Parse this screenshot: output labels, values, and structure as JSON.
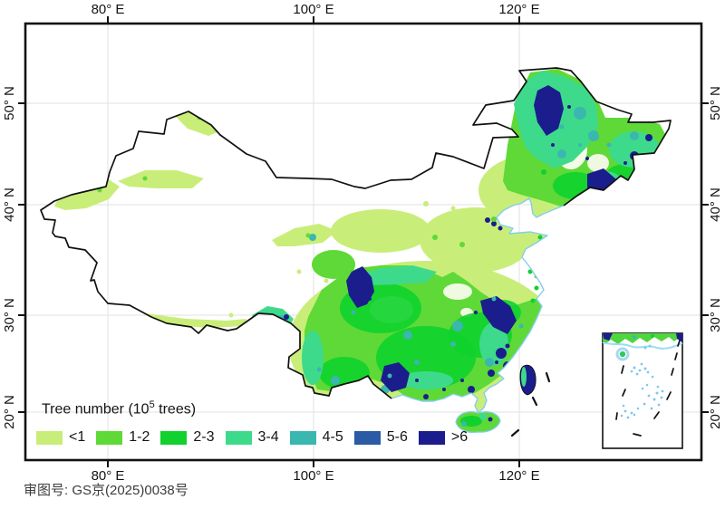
{
  "map": {
    "axes": {
      "top": [
        "80° E",
        "100° E",
        "120° E"
      ],
      "bottom": [
        "80° E",
        "100° E",
        "120° E"
      ],
      "left": [
        "50° N",
        "40° N",
        "30° N",
        "20° N"
      ],
      "right": [
        "50° N",
        "40° N",
        "30° N",
        "20° N"
      ]
    },
    "legend": {
      "title_prefix": "Tree number (10",
      "title_sup": "5",
      "title_suffix": " trees)",
      "items": [
        {
          "label": "<1",
          "color": "#c8ee79"
        },
        {
          "label": "1-2",
          "color": "#5fd937"
        },
        {
          "label": "2-3",
          "color": "#10d12e"
        },
        {
          "label": "3-4",
          "color": "#3eda8b"
        },
        {
          "label": "4-5",
          "color": "#3ab7af"
        },
        {
          "label": "5-6",
          "color": "#2a5ba4"
        },
        {
          "label": ">6",
          "color": "#1b1d8c"
        }
      ]
    },
    "footnote": "审图号: GS京(2025)0038号",
    "colors": {
      "border": "#111111",
      "coastline": "#85cdec",
      "grid": "#e2e2e2",
      "island_dots": "#7fc8ea"
    },
    "inset": {
      "name": "south-china-sea-inset"
    }
  }
}
